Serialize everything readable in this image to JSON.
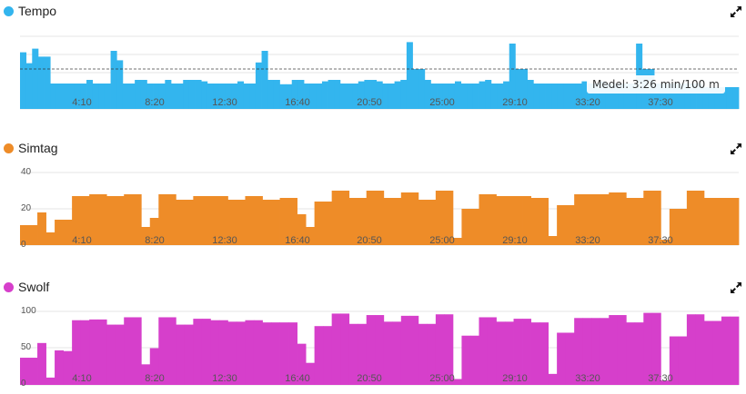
{
  "panels": [
    {
      "key": "tempo",
      "title": "Tempo",
      "color": "#33b5ee",
      "expand_icon": "expand-icon",
      "tooltip": "Medel: 3:26 min/100 m"
    },
    {
      "key": "simtag",
      "title": "Simtag",
      "color": "#ee8c28",
      "expand_icon": "expand-icon"
    },
    {
      "key": "swolf",
      "title": "Swolf",
      "color": "#d63fcb",
      "expand_icon": "expand-icon"
    }
  ],
  "chart_data": [
    {
      "type": "area",
      "title": "Tempo",
      "x_tick_labels": [
        "4:10",
        "8:20",
        "12:30",
        "16:40",
        "20:50",
        "25:00",
        "29:10",
        "33:20",
        "37:30"
      ],
      "y_axis_labels": [],
      "average_label": "Medel: 3:26 min/100 m",
      "average_level": 0.55,
      "series": [
        {
          "values": [
            0.78,
            0.63,
            0.83,
            0.72,
            0.72,
            0.35,
            0.35,
            0.35,
            0.35,
            0.35,
            0.35,
            0.4,
            0.35,
            0.35,
            0.35,
            0.8,
            0.67,
            0.35,
            0.35,
            0.4,
            0.4,
            0.35,
            0.35,
            0.35,
            0.4,
            0.35,
            0.35,
            0.4,
            0.4,
            0.4,
            0.38,
            0.35,
            0.35,
            0.35,
            0.35,
            0.35,
            0.38,
            0.35,
            0.35,
            0.64,
            0.8,
            0.4,
            0.4,
            0.34,
            0.34,
            0.4,
            0.4,
            0.35,
            0.35,
            0.35,
            0.38,
            0.4,
            0.4,
            0.35,
            0.35,
            0.35,
            0.38,
            0.4,
            0.4,
            0.38,
            0.35,
            0.35,
            0.38,
            0.4,
            0.92,
            0.55,
            0.55,
            0.4,
            0.35,
            0.35,
            0.35,
            0.35,
            0.38,
            0.35,
            0.35,
            0.35,
            0.38,
            0.4,
            0.35,
            0.35,
            0.38,
            0.9,
            0.55,
            0.55,
            0.4,
            0.35,
            0.35,
            0.35,
            0.35,
            0.35,
            0.35,
            0.35,
            0.35,
            0.38,
            0.35,
            0.35,
            0.38,
            0.35,
            0.35,
            0.35,
            0.35,
            0.35,
            0.9,
            0.55,
            0.55,
            0.35,
            0.35,
            0.35,
            0.35,
            0.35,
            0.35,
            0.35,
            0.35,
            0.3,
            0.3,
            0.3,
            0.3,
            0.3,
            0.3
          ]
        }
      ]
    },
    {
      "type": "bar",
      "title": "Simtag",
      "x_tick_labels": [
        "4:10",
        "8:20",
        "12:30",
        "16:40",
        "20:50",
        "25:00",
        "29:10",
        "33:20",
        "37:30"
      ],
      "y_axis_labels": [
        "40",
        "20",
        "0"
      ],
      "ylim": [
        0,
        40
      ],
      "series": [
        {
          "values": [
            11,
            11,
            18,
            7,
            14,
            14,
            27,
            27,
            28,
            28,
            27,
            27,
            28,
            28,
            10,
            15,
            28,
            28,
            25,
            25,
            27,
            27,
            27,
            27,
            25,
            25,
            27,
            27,
            25,
            25,
            26,
            26,
            17,
            10,
            24,
            24,
            30,
            30,
            26,
            26,
            30,
            30,
            26,
            26,
            29,
            29,
            25,
            25,
            30,
            30,
            4,
            20,
            20,
            28,
            28,
            27,
            27,
            27,
            27,
            26,
            26,
            5,
            22,
            22,
            28,
            28,
            28,
            28,
            29,
            29,
            26,
            26,
            30,
            30,
            3,
            20,
            20,
            30,
            30,
            26,
            26,
            26,
            26
          ]
        }
      ]
    },
    {
      "type": "bar",
      "title": "Swolf",
      "x_tick_labels": [
        "4:10",
        "8:20",
        "12:30",
        "16:40",
        "20:50",
        "25:00",
        "29:10",
        "33:20",
        "37:30"
      ],
      "y_axis_labels": [
        "100",
        "50",
        "0"
      ],
      "ylim": [
        0,
        100
      ],
      "series": [
        {
          "values": [
            37,
            37,
            57,
            10,
            47,
            46,
            88,
            88,
            89,
            89,
            82,
            82,
            92,
            92,
            28,
            50,
            92,
            92,
            82,
            82,
            90,
            90,
            88,
            88,
            86,
            86,
            88,
            88,
            85,
            85,
            85,
            85,
            56,
            30,
            80,
            80,
            97,
            97,
            83,
            83,
            95,
            95,
            86,
            86,
            94,
            94,
            83,
            83,
            96,
            96,
            8,
            67,
            67,
            92,
            92,
            86,
            86,
            90,
            90,
            85,
            85,
            15,
            71,
            71,
            91,
            91,
            91,
            91,
            95,
            95,
            85,
            85,
            98,
            98,
            6,
            66,
            66,
            96,
            96,
            87,
            87,
            93,
            93
          ]
        }
      ]
    }
  ]
}
